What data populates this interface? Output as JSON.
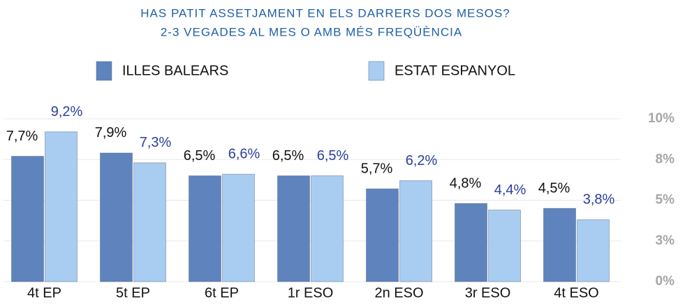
{
  "chart_data": {
    "type": "bar",
    "title": "HAS PATIT ASSETJAMENT EN ELS DARRERS DOS MESOS?",
    "subtitle": "2-3 VEGADES AL MES O AMB MÉS FREQÜÈNCIA",
    "categories": [
      "4t EP",
      "5t EP",
      "6t EP",
      "1r ESO",
      "2n ESO",
      "3r ESO",
      "4t ESO"
    ],
    "series": [
      {
        "name": "ILLES BALEARS",
        "color": "#5f84bd",
        "values": [
          7.7,
          7.9,
          6.5,
          6.5,
          5.7,
          4.8,
          4.5
        ],
        "value_labels": [
          "7,7%",
          "7,9%",
          "6,5%",
          "6,5%",
          "5,7%",
          "4,8%",
          "4,5%"
        ],
        "label_color": "#111111"
      },
      {
        "name": "ESTAT ESPANYOL",
        "color": "#a9cdf1",
        "values": [
          9.2,
          7.3,
          6.6,
          6.5,
          6.2,
          4.4,
          3.8
        ],
        "value_labels": [
          "9,2%",
          "7,3%",
          "6,6%",
          "6,5%",
          "6,2%",
          "4,4%",
          "3,8%"
        ],
        "label_color": "#2b3f9c"
      }
    ],
    "ylim": [
      0,
      10
    ],
    "yticks": [
      {
        "value": 0,
        "label": "0%"
      },
      {
        "value": 2.5,
        "label": "3%"
      },
      {
        "value": 5,
        "label": "5%"
      },
      {
        "value": 7.5,
        "label": "8%"
      },
      {
        "value": 10,
        "label": "10%"
      }
    ],
    "grid": true
  }
}
